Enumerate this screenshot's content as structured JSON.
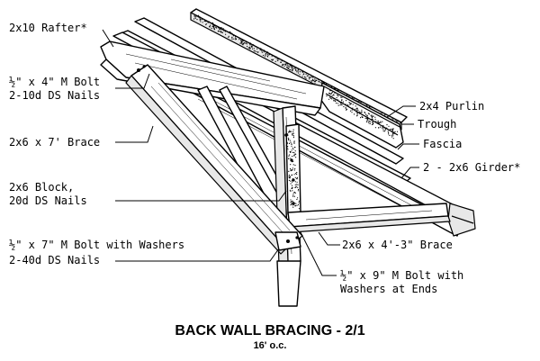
{
  "labels": {
    "rafter": "2x10 Rafter*",
    "bolt_top_line1": "½\" x 4\" M Bolt",
    "bolt_top_line2": "2-10d DS Nails",
    "brace_7ft": "2x6 x 7' Brace",
    "block_line1": "2x6 Block,",
    "block_line2": "20d DS Nails",
    "bolt_bottom_line1": "½\" x 7\" M Bolt with Washers",
    "bolt_bottom_line2": "2-40d DS Nails",
    "purlin": "2x4 Purlin",
    "trough": "Trough",
    "fascia": "Fascia",
    "girder": "2 - 2x6 Girder*",
    "brace_4ft": "2x6 x 4'-3\" Brace",
    "bolt_9in_line1": "½\" x 9\" M Bolt with",
    "bolt_9in_line2": "Washers at Ends"
  },
  "caption": {
    "title": "BACK WALL BRACING - 2/1",
    "subtitle": "16' o.c."
  }
}
